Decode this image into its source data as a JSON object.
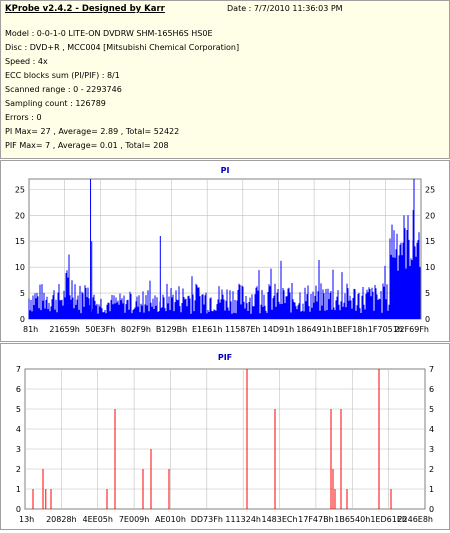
{
  "header": {
    "title": "KProbe v2.4.2 - Designed by Karr",
    "date": "Date : 7/7/2010 11:36:03 PM",
    "lines": [
      "Model : 0-0-1-0 LITE-ON DVDRW SHM-165H6S HS0E",
      "Disc : DVD+R , MCC004 [Mitsubishi Chemical Corporation]",
      "Speed : 4x",
      "ECC blocks sum (PI/PIF) : 8/1",
      "Scanned range : 0 - 2293746",
      "Sampling count : 126789",
      "Errors : 0",
      "PI Max= 27 , Average= 2.89 , Total= 52422",
      "PIF Max= 7 , Average= 0.01 , Total= 208"
    ]
  },
  "colors": {
    "pi": "#0000ff",
    "pif": "#ff0000",
    "grid": "#c0c0c0"
  },
  "chart_data": [
    {
      "type": "bar",
      "title": "PI",
      "xlabel": "",
      "ylabel": "",
      "ylim": [
        0,
        27
      ],
      "grid": true,
      "yticks": [
        0,
        5,
        10,
        15,
        20,
        25
      ],
      "xticks": [
        "81h",
        "21659h",
        "50E3Fh",
        "802F9h",
        "B129Bh",
        "E1E61h",
        "11587Eh",
        "14D91h",
        "186491h",
        "1BEF18h",
        "1F7051h",
        "22F69Fh"
      ],
      "segments": [
        {
          "from": 0.0,
          "to": 0.07,
          "base": 4,
          "spread": 3
        },
        {
          "from": 0.07,
          "to": 0.09,
          "base": 4,
          "spread": 3
        },
        {
          "from": 0.09,
          "to": 0.12,
          "base": 6,
          "spread": 4
        },
        {
          "from": 0.12,
          "to": 0.16,
          "base": 4,
          "spread": 3
        },
        {
          "from": 0.16,
          "to": 0.35,
          "base": 3,
          "spread": 2
        },
        {
          "from": 0.35,
          "to": 0.92,
          "base": 4,
          "spread": 3
        },
        {
          "from": 0.92,
          "to": 1.0,
          "base": 15,
          "spread": 6
        }
      ],
      "peaks": [
        {
          "pos": 0.157,
          "value": 27
        },
        {
          "pos": 0.16,
          "value": 15
        },
        {
          "pos": 0.335,
          "value": 16
        },
        {
          "pos": 0.98,
          "value": 21
        }
      ]
    },
    {
      "type": "bar",
      "title": "PIF",
      "xlabel": "",
      "ylabel": "",
      "ylim": [
        0,
        7
      ],
      "grid": true,
      "yticks": [
        0,
        1,
        2,
        3,
        4,
        5,
        6,
        7
      ],
      "xticks": [
        "13h",
        "20828h",
        "4EE05h",
        "7E009h",
        "AE010h",
        "DD73Fh",
        "111324h",
        "1483ECh",
        "17F47Bh",
        "1B6540h",
        "1ED61Eh",
        "2246E8h"
      ],
      "values": [
        {
          "pos": 0.02,
          "value": 1
        },
        {
          "pos": 0.045,
          "value": 2
        },
        {
          "pos": 0.052,
          "value": 1
        },
        {
          "pos": 0.065,
          "value": 1
        },
        {
          "pos": 0.205,
          "value": 1
        },
        {
          "pos": 0.225,
          "value": 5
        },
        {
          "pos": 0.295,
          "value": 2
        },
        {
          "pos": 0.315,
          "value": 3
        },
        {
          "pos": 0.36,
          "value": 2
        },
        {
          "pos": 0.555,
          "value": 7
        },
        {
          "pos": 0.625,
          "value": 5
        },
        {
          "pos": 0.765,
          "value": 5
        },
        {
          "pos": 0.77,
          "value": 2
        },
        {
          "pos": 0.775,
          "value": 1
        },
        {
          "pos": 0.79,
          "value": 5
        },
        {
          "pos": 0.805,
          "value": 1
        },
        {
          "pos": 0.885,
          "value": 7
        },
        {
          "pos": 0.915,
          "value": 1
        }
      ]
    }
  ]
}
